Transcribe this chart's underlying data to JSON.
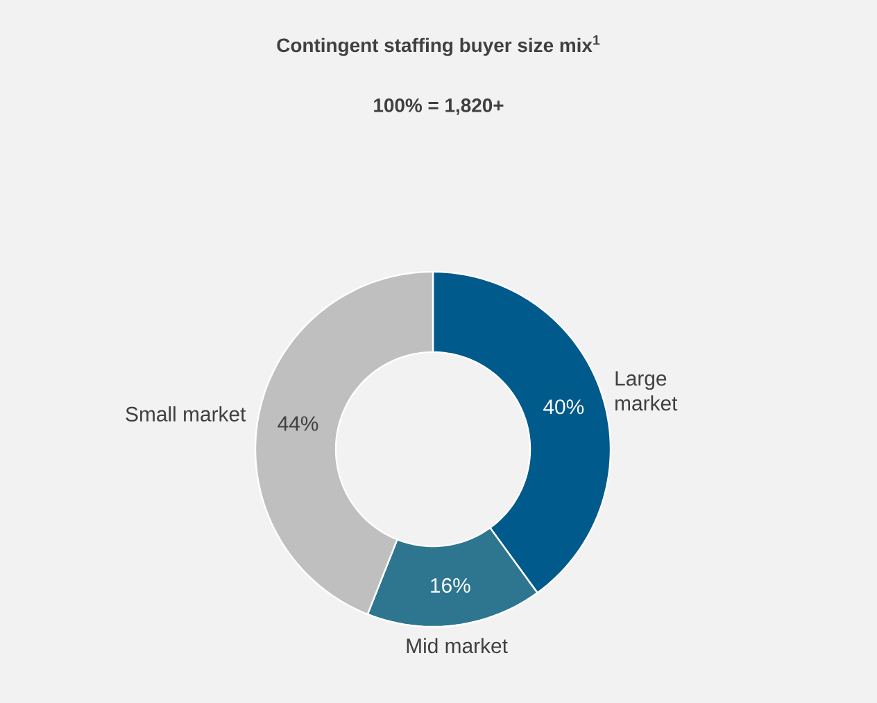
{
  "chart_data": {
    "type": "donut",
    "title": "Contingent staffing buyer size mix$^{1}$",
    "subtitle": "100% = 1,820+",
    "categories": [
      "Large market",
      "Mid market",
      "Small market"
    ],
    "values": [
      40,
      16,
      44
    ],
    "value_labels": [
      "40%",
      "16%",
      "44%"
    ],
    "colors": [
      "#005a8c",
      "#2e7590",
      "#bfbfbf"
    ]
  }
}
